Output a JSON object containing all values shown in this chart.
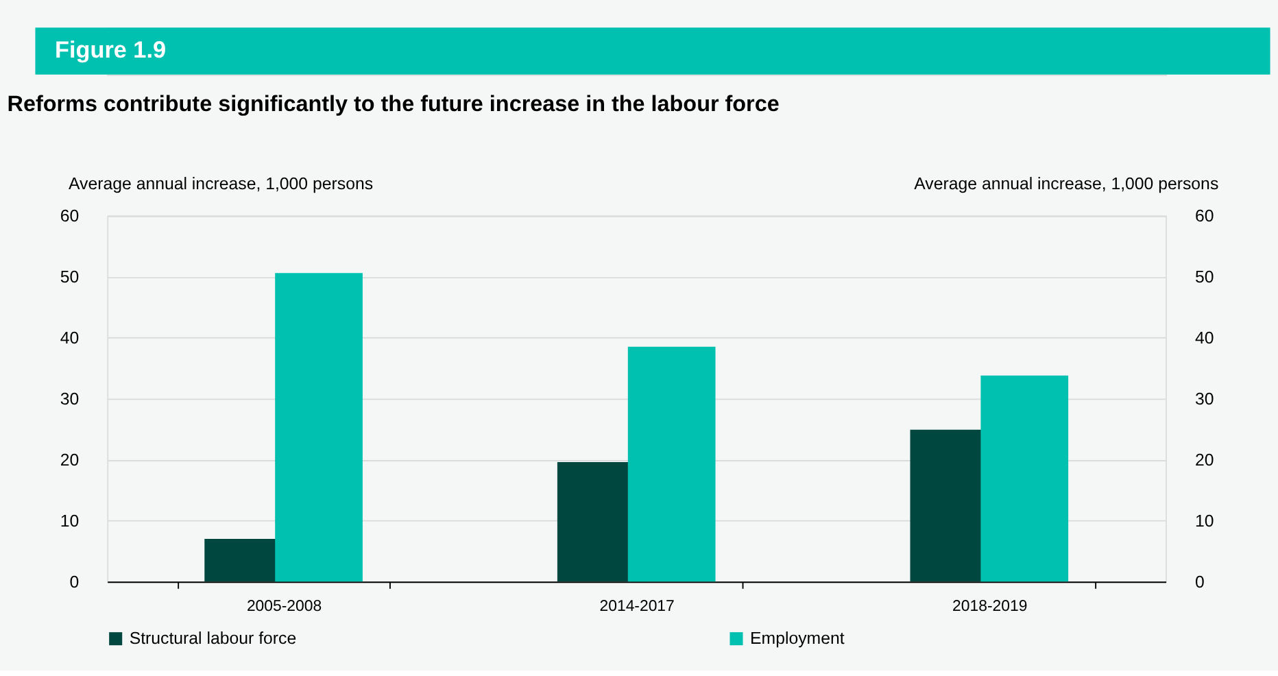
{
  "chart_data": {
    "type": "bar",
    "title": "Reforms contribute significantly to the future increase in the labour force",
    "annotations": [
      "Figure 1.9"
    ],
    "ylabel": "Average annual increase, 1,000 persons",
    "y2label": "Average annual increase, 1,000 persons",
    "categories": [
      "2005-2008",
      "2014-2017",
      "2018-2019"
    ],
    "series": [
      {
        "name": "Structural labour force",
        "color": "#004740",
        "values": [
          7.0,
          19.6,
          24.9
        ]
      },
      {
        "name": "Employment",
        "color": "#00c0b0",
        "values": [
          50.6,
          38.5,
          33.8
        ]
      }
    ],
    "ylim": [
      0,
      60
    ],
    "yticks": [
      0,
      10,
      20,
      30,
      40,
      50,
      60
    ],
    "y2lim": [
      0,
      60
    ],
    "y2ticks": [
      0,
      10,
      20,
      30,
      40,
      50,
      60
    ],
    "grid": "y",
    "legend": "bottom"
  }
}
